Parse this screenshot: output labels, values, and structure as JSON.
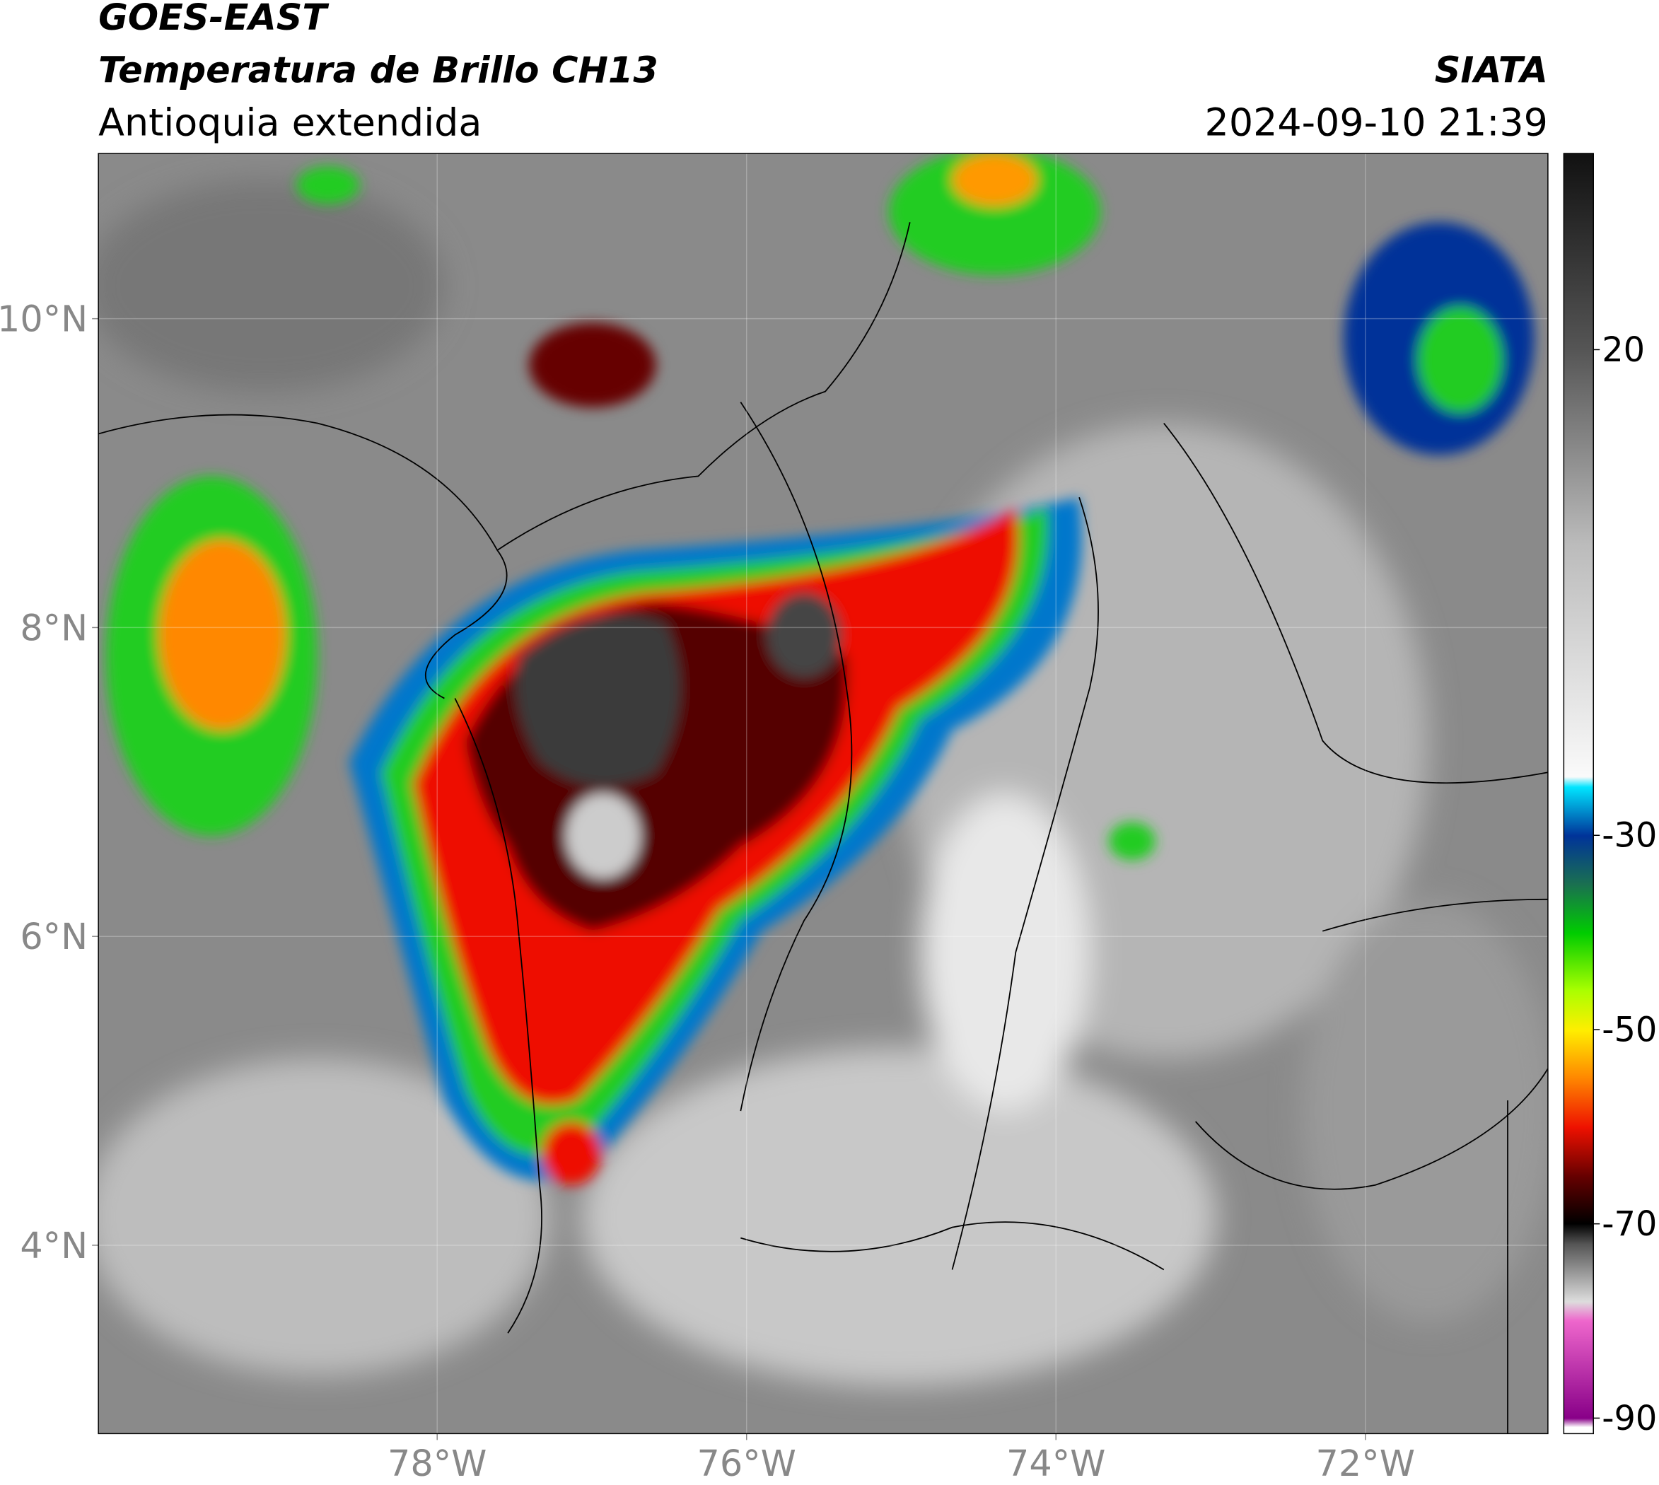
{
  "header": {
    "title": "GOES-EAST",
    "subtitle": "Temperatura de Brillo CH13",
    "region": "Antioquia extendida",
    "source": "SIATA",
    "datetime": "2024-09-10 21:39"
  },
  "map": {
    "xlim": [
      -80.19,
      -70.82
    ],
    "ylim": [
      2.78,
      11.07
    ],
    "xticks": [
      {
        "value": -78,
        "label": "78°W"
      },
      {
        "value": -76,
        "label": "76°W"
      },
      {
        "value": -74,
        "label": "74°W"
      },
      {
        "value": -72,
        "label": "72°W"
      }
    ],
    "yticks": [
      {
        "value": 4,
        "label": "4°N"
      },
      {
        "value": 6,
        "label": "6°N"
      },
      {
        "value": 8,
        "label": "8°N"
      },
      {
        "value": 10,
        "label": "10°N"
      }
    ]
  },
  "colorbar": {
    "lim": [
      -91.6,
      40.2
    ],
    "ticks": [
      -90,
      -70,
      -50,
      -30,
      20
    ]
  }
}
